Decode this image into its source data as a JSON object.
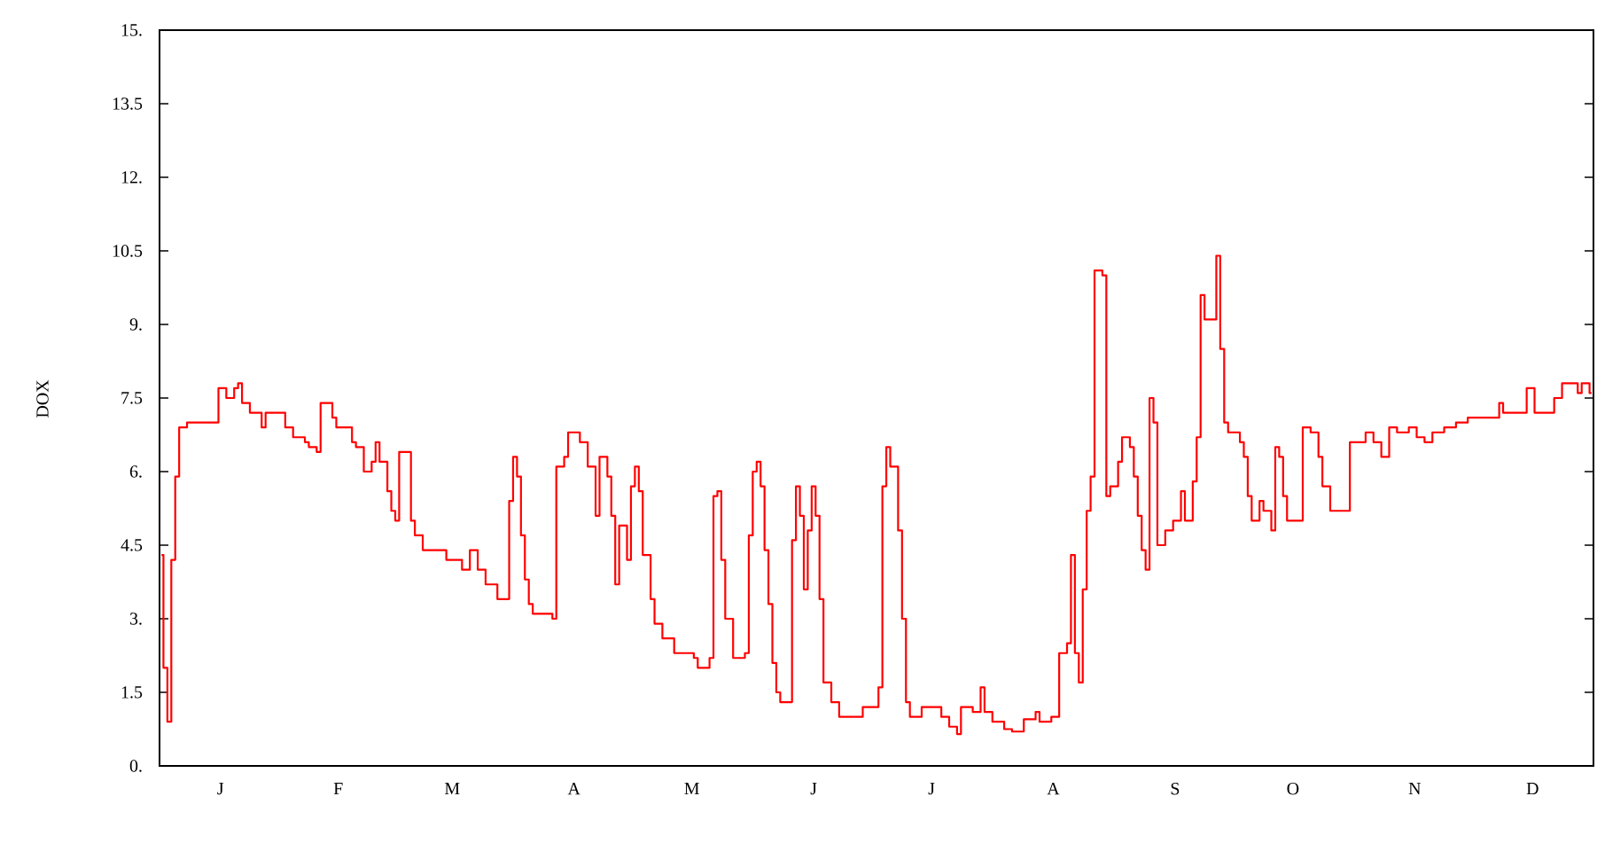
{
  "chart_data": {
    "type": "step",
    "ylabel": "DOX",
    "categories": [
      null,
      null,
      null,
      null,
      null,
      null,
      null,
      null,
      null,
      null,
      null,
      null,
      null,
      null,
      null,
      "J",
      null,
      null,
      null,
      null,
      null,
      null,
      null,
      null,
      null,
      null,
      null,
      null,
      null,
      null,
      null,
      null,
      null,
      null,
      null,
      null,
      null,
      null,
      null,
      null,
      null,
      null,
      null,
      null,
      null,
      "F",
      null,
      null,
      null,
      null,
      null,
      null,
      null,
      null,
      null,
      null,
      null,
      null,
      null,
      null,
      null,
      null,
      null,
      null,
      null,
      null,
      null,
      null,
      null,
      null,
      null,
      null,
      null,
      null,
      "M",
      null,
      null,
      null,
      null,
      null,
      null,
      null,
      null,
      null,
      null,
      null,
      null,
      null,
      null,
      null,
      null,
      null,
      null,
      null,
      null,
      null,
      null,
      null,
      null,
      null,
      null,
      null,
      null,
      null,
      null,
      "A",
      null,
      null,
      null,
      null,
      null,
      null,
      null,
      null,
      null,
      null,
      null,
      null,
      null,
      null,
      null,
      null,
      null,
      null,
      null,
      null,
      null,
      null,
      null,
      null,
      null,
      null,
      null,
      null,
      null,
      "M",
      null,
      null,
      null,
      null,
      null,
      null,
      null,
      null,
      null,
      null,
      null,
      null,
      null,
      null,
      null,
      null,
      null,
      null,
      null,
      null,
      null,
      null,
      null,
      null,
      null,
      null,
      null,
      null,
      null,
      null,
      "J",
      null,
      null,
      null,
      null,
      null,
      null,
      null,
      null,
      null,
      null,
      null,
      null,
      null,
      null,
      null,
      null,
      null,
      null,
      null,
      null,
      null,
      null,
      null,
      null,
      null,
      null,
      null,
      null,
      null,
      "J",
      null,
      null,
      null,
      null,
      null,
      null,
      null,
      null,
      null,
      null,
      null,
      null,
      null,
      null,
      null,
      null,
      null,
      null,
      null,
      null,
      null,
      null,
      null,
      null,
      null,
      null,
      null,
      null,
      null,
      null,
      "A",
      null,
      null,
      null,
      null,
      null,
      null,
      null,
      null,
      null,
      null,
      null,
      null,
      null,
      null,
      null,
      null,
      null,
      null,
      null,
      null,
      null,
      null,
      null,
      null,
      null,
      null,
      null,
      null,
      null,
      null,
      "S",
      null,
      null,
      null,
      null,
      null,
      null,
      null,
      null,
      null,
      null,
      null,
      null,
      null,
      null,
      null,
      null,
      null,
      null,
      null,
      null,
      null,
      null,
      null,
      null,
      null,
      null,
      null,
      null,
      null,
      "O",
      null,
      null,
      null,
      null,
      null,
      null,
      null,
      null,
      null,
      null,
      null,
      null,
      null,
      null,
      null,
      null,
      null,
      null,
      null,
      null,
      null,
      null,
      null,
      null,
      null,
      null,
      null,
      null,
      null,
      null,
      "N",
      null,
      null,
      null,
      null,
      null,
      null,
      null,
      null,
      null,
      null,
      null,
      null,
      null,
      null,
      null,
      null,
      null,
      null,
      null,
      null,
      null,
      null,
      null,
      null,
      null,
      null,
      null,
      null,
      null,
      "D",
      null,
      null,
      null,
      null,
      null,
      null,
      null,
      null,
      null,
      null,
      null,
      null,
      null,
      null,
      null
    ],
    "series": [
      {
        "color": "#ff0000",
        "values": [
          4.3,
          2.0,
          0.9,
          4.2,
          5.9,
          6.9,
          6.9,
          7.0,
          7.0,
          7.0,
          7.0,
          7.0,
          7.0,
          7.0,
          7.0,
          7.7,
          7.7,
          7.5,
          7.5,
          7.7,
          7.8,
          7.4,
          7.4,
          7.2,
          7.2,
          7.2,
          6.9,
          7.2,
          7.2,
          7.2,
          7.2,
          7.2,
          6.9,
          6.9,
          6.7,
          6.7,
          6.7,
          6.6,
          6.5,
          6.5,
          6.4,
          7.4,
          7.4,
          7.4,
          7.1,
          6.9,
          6.9,
          6.9,
          6.9,
          6.6,
          6.5,
          6.5,
          6.0,
          6.0,
          6.2,
          6.6,
          6.2,
          6.2,
          5.6,
          5.2,
          5.0,
          6.4,
          6.4,
          6.4,
          5.0,
          4.7,
          4.7,
          4.4,
          4.4,
          4.4,
          4.4,
          4.4,
          4.4,
          4.2,
          4.2,
          4.2,
          4.2,
          4.0,
          4.0,
          4.4,
          4.4,
          4.0,
          4.0,
          3.7,
          3.7,
          3.7,
          3.4,
          3.4,
          3.4,
          5.4,
          6.3,
          5.9,
          4.7,
          3.8,
          3.3,
          3.1,
          3.1,
          3.1,
          3.1,
          3.1,
          3.0,
          6.1,
          6.1,
          6.3,
          6.8,
          6.8,
          6.8,
          6.6,
          6.6,
          6.1,
          6.1,
          5.1,
          6.3,
          6.3,
          5.9,
          5.1,
          3.7,
          4.9,
          4.9,
          4.2,
          5.7,
          6.1,
          5.6,
          4.3,
          4.3,
          3.4,
          2.9,
          2.9,
          2.6,
          2.6,
          2.6,
          2.3,
          2.3,
          2.3,
          2.3,
          2.3,
          2.2,
          2.0,
          2.0,
          2.0,
          2.2,
          5.5,
          5.6,
          4.2,
          3.0,
          3.0,
          2.2,
          2.2,
          2.2,
          2.3,
          4.7,
          6.0,
          6.2,
          5.7,
          4.4,
          3.3,
          2.1,
          1.5,
          1.3,
          1.3,
          1.3,
          4.6,
          5.7,
          5.1,
          3.6,
          4.8,
          5.7,
          5.1,
          3.4,
          1.7,
          1.7,
          1.3,
          1.3,
          1.0,
          1.0,
          1.0,
          1.0,
          1.0,
          1.0,
          1.2,
          1.2,
          1.2,
          1.2,
          1.6,
          5.7,
          6.5,
          6.1,
          6.1,
          4.8,
          3.0,
          1.3,
          1.0,
          1.0,
          1.0,
          1.2,
          1.2,
          1.2,
          1.2,
          1.2,
          1.0,
          1.0,
          0.8,
          0.8,
          0.65,
          1.2,
          1.2,
          1.2,
          1.1,
          1.1,
          1.6,
          1.1,
          1.1,
          0.9,
          0.9,
          0.9,
          0.75,
          0.75,
          0.7,
          0.7,
          0.7,
          0.95,
          0.95,
          0.95,
          1.1,
          0.9,
          0.9,
          0.9,
          1.0,
          1.0,
          2.3,
          2.3,
          2.5,
          4.3,
          2.3,
          1.7,
          3.6,
          5.2,
          5.9,
          10.1,
          10.1,
          10.0,
          5.5,
          5.7,
          5.7,
          6.2,
          6.7,
          6.7,
          6.5,
          5.9,
          5.1,
          4.4,
          4.0,
          7.5,
          7.0,
          4.5,
          4.5,
          4.8,
          4.8,
          5.0,
          5.0,
          5.6,
          5.0,
          5.0,
          5.8,
          6.7,
          9.6,
          9.1,
          9.1,
          9.1,
          10.4,
          8.5,
          7.0,
          6.8,
          6.8,
          6.8,
          6.6,
          6.3,
          5.5,
          5.0,
          5.0,
          5.4,
          5.2,
          5.2,
          4.8,
          6.5,
          6.3,
          5.5,
          5.0,
          5.0,
          5.0,
          5.0,
          6.9,
          6.9,
          6.8,
          6.8,
          6.3,
          5.7,
          5.7,
          5.2,
          5.2,
          5.2,
          5.2,
          5.2,
          6.6,
          6.6,
          6.6,
          6.6,
          6.8,
          6.8,
          6.6,
          6.6,
          6.3,
          6.3,
          6.9,
          6.9,
          6.8,
          6.8,
          6.8,
          6.9,
          6.9,
          6.7,
          6.7,
          6.6,
          6.6,
          6.8,
          6.8,
          6.8,
          6.9,
          6.9,
          6.9,
          7.0,
          7.0,
          7.0,
          7.1,
          7.1,
          7.1,
          7.1,
          7.1,
          7.1,
          7.1,
          7.1,
          7.4,
          7.2,
          7.2,
          7.2,
          7.2,
          7.2,
          7.2,
          7.7,
          7.7,
          7.2,
          7.2,
          7.2,
          7.2,
          7.2,
          7.5,
          7.5,
          7.8,
          7.8,
          7.8,
          7.8,
          7.6,
          7.8,
          7.8,
          7.6
        ]
      }
    ],
    "ylim": [
      0,
      15
    ],
    "yticks": [
      {
        "value": 0,
        "label": "0."
      },
      {
        "value": 1.5,
        "label": "1.5"
      },
      {
        "value": 3,
        "label": "3."
      },
      {
        "value": 4.5,
        "label": "4.5"
      },
      {
        "value": 6,
        "label": "6."
      },
      {
        "value": 7.5,
        "label": "7.5"
      },
      {
        "value": 9,
        "label": "9."
      },
      {
        "value": 10.5,
        "label": "10.5"
      },
      {
        "value": 12,
        "label": "12."
      },
      {
        "value": 13.5,
        "label": "13.5"
      },
      {
        "value": 15,
        "label": "15."
      }
    ],
    "marker": "none",
    "line_style": "solid"
  }
}
